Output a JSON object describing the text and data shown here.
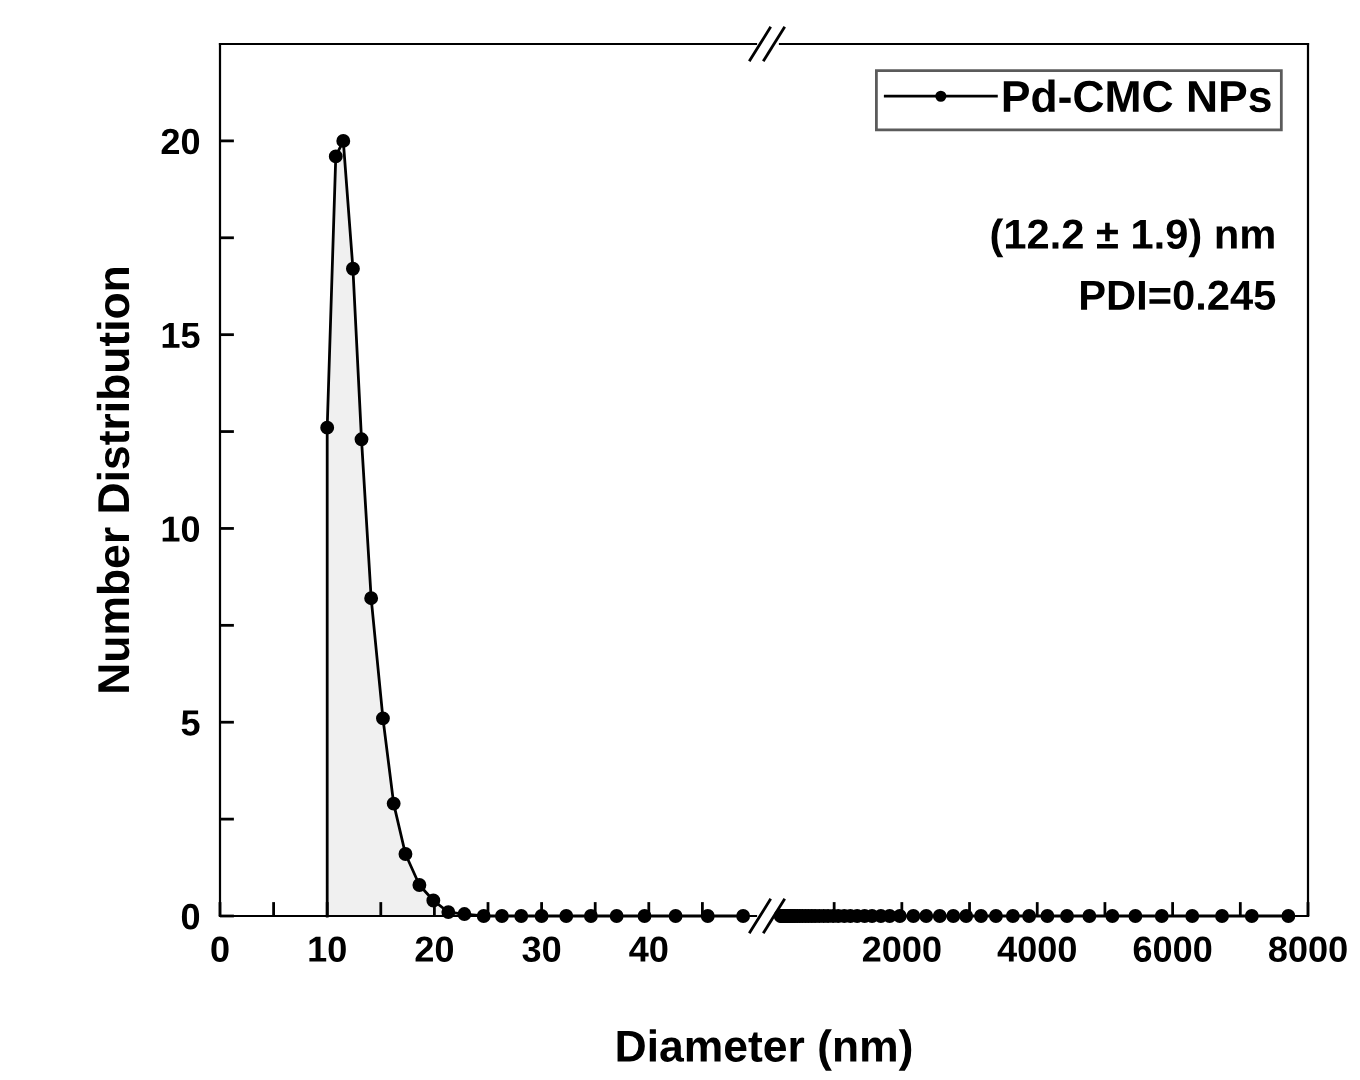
{
  "chart_data": [
    {
      "type": "area",
      "xlabel": "Diameter (nm)",
      "ylabel": "Number Distribution",
      "xlim": [
        0,
        50
      ],
      "xticks": [
        0,
        {
          "value": 5,
          "label": null
        },
        10,
        {
          "value": 15,
          "label": null
        },
        20,
        {
          "value": 25,
          "label": null
        },
        30,
        {
          "value": 35,
          "label": null
        },
        40,
        {
          "value": 45,
          "label": null
        }
      ],
      "ylim": [
        0,
        22.5
      ],
      "yticks": [
        0,
        {
          "value": 2.5,
          "label": null
        },
        5,
        {
          "value": 7.5,
          "label": null
        },
        10,
        {
          "value": 12.5,
          "label": null
        },
        15,
        {
          "value": 17.5,
          "label": null
        },
        20
      ],
      "marker": "circle",
      "line_style": "solid",
      "grid": false,
      "tick_labels": "xy",
      "series": [
        {
          "color": "#000000",
          "x": [
            10.0,
            10.0,
            10.8,
            11.5,
            12.4,
            13.2,
            14.1,
            15.2,
            16.2,
            17.3,
            18.6,
            19.9,
            21.3,
            22.8,
            24.6,
            26.3,
            28.1,
            30.0,
            32.3,
            34.6,
            37.0,
            39.6,
            42.5,
            45.5,
            48.8
          ],
          "values": [
            0,
            12.6,
            19.6,
            20.0,
            16.7,
            12.3,
            8.2,
            5.1,
            2.9,
            1.6,
            0.8,
            0.4,
            0.1,
            0.05,
            0,
            0,
            0,
            0,
            0,
            0,
            0,
            0,
            0,
            0,
            0
          ]
        }
      ]
    },
    {
      "type": "line",
      "xlim": [
        200,
        8000
      ],
      "xticks": [
        {
          "value": 1000,
          "label": null
        },
        2000,
        {
          "value": 3000,
          "label": null
        },
        4000,
        {
          "value": 5000,
          "label": null
        },
        6000,
        {
          "value": 7000,
          "label": null
        },
        8000
      ],
      "ylim": [
        0,
        22.5
      ],
      "marker": "circle",
      "line_style": "solid",
      "grid": false,
      "tick_labels": "x",
      "legend": "top right",
      "annotations": [
        "(12.2 ± 1.9) nm",
        "PDI=0.245"
      ],
      "series": [
        {
          "name": "Pd-CMC NPs",
          "color": "#000000",
          "x": [
            210,
            228,
            245,
            265,
            285,
            310,
            335,
            360,
            390,
            420,
            455,
            490,
            530,
            575,
            620,
            670,
            720,
            780,
            845,
            910,
            985,
            1060,
            1150,
            1240,
            1340,
            1450,
            1560,
            1690,
            1820,
            1970,
            2170,
            2360,
            2560,
            2760,
            2950,
            3170,
            3390,
            3640,
            3880,
            4150,
            4440,
            4770,
            5110,
            5450,
            5840,
            6290,
            6730,
            7170,
            7710
          ],
          "values": [
            0,
            0,
            0,
            0,
            0,
            0,
            0,
            0,
            0,
            0,
            0,
            0,
            0,
            0,
            0,
            0,
            0,
            0,
            0,
            0,
            0,
            0,
            0,
            0,
            0,
            0,
            0,
            0,
            0,
            0,
            0,
            0,
            0,
            0,
            0,
            0,
            0,
            0,
            0,
            0,
            0,
            0,
            0,
            0,
            0,
            0,
            0,
            0,
            0
          ]
        }
      ]
    }
  ]
}
